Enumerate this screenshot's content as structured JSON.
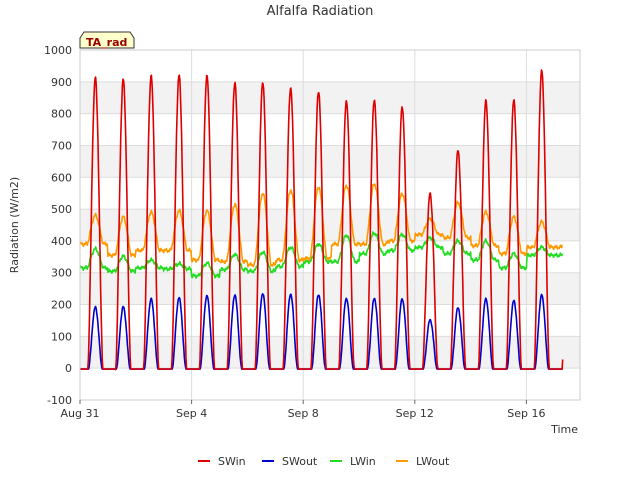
{
  "chart_data": {
    "type": "line",
    "title": "Alfalfa Radiation",
    "xlabel": "Time",
    "ylabel": "Radiation (W/m2)",
    "ylim": [
      -100,
      1000
    ],
    "yticks": [
      -100,
      0,
      100,
      200,
      300,
      400,
      500,
      600,
      700,
      800,
      900,
      1000
    ],
    "x_range": [
      "2023-08-31",
      "2023-09-18"
    ],
    "xticks": [
      {
        "label": "Aug 31",
        "day": 0
      },
      {
        "label": "Sep 4",
        "day": 4
      },
      {
        "label": "Sep 8",
        "day": 8
      },
      {
        "label": "Sep 12",
        "day": 12
      },
      {
        "label": "Sep 16",
        "day": 16
      }
    ],
    "grid": true,
    "legend_placement": "bottom",
    "annotation": "TA_rad",
    "data_span_days": 17.3,
    "series": [
      {
        "name": "SWin",
        "color": "#dd0000",
        "daily_peak": [
          912,
          908,
          918,
          922,
          920,
          898,
          900,
          882,
          872,
          842,
          845,
          822,
          550,
          685,
          840,
          842,
          935
        ]
      },
      {
        "name": "SWout",
        "color": "#0000cc",
        "daily_peak": [
          192,
          193,
          218,
          222,
          228,
          230,
          235,
          233,
          232,
          220,
          220,
          218,
          152,
          190,
          218,
          212,
          230
        ]
      },
      {
        "name": "LWin",
        "color": "#22dd22",
        "daily_night": [
          315,
          305,
          315,
          312,
          290,
          310,
          305,
          320,
          335,
          335,
          360,
          370,
          380,
          360,
          340,
          315,
          355
        ],
        "daily_peak": [
          375,
          352,
          340,
          328,
          330,
          358,
          365,
          380,
          390,
          418,
          425,
          420,
          410,
          400,
          400,
          360,
          380
        ]
      },
      {
        "name": "LWout",
        "color": "#ff9900",
        "daily_night": [
          390,
          355,
          370,
          370,
          340,
          335,
          325,
          340,
          345,
          390,
          390,
          400,
          420,
          410,
          385,
          360,
          380
        ],
        "daily_peak": [
          480,
          475,
          490,
          495,
          495,
          515,
          550,
          560,
          570,
          575,
          580,
          548,
          470,
          520,
          490,
          475,
          460
        ]
      }
    ]
  }
}
